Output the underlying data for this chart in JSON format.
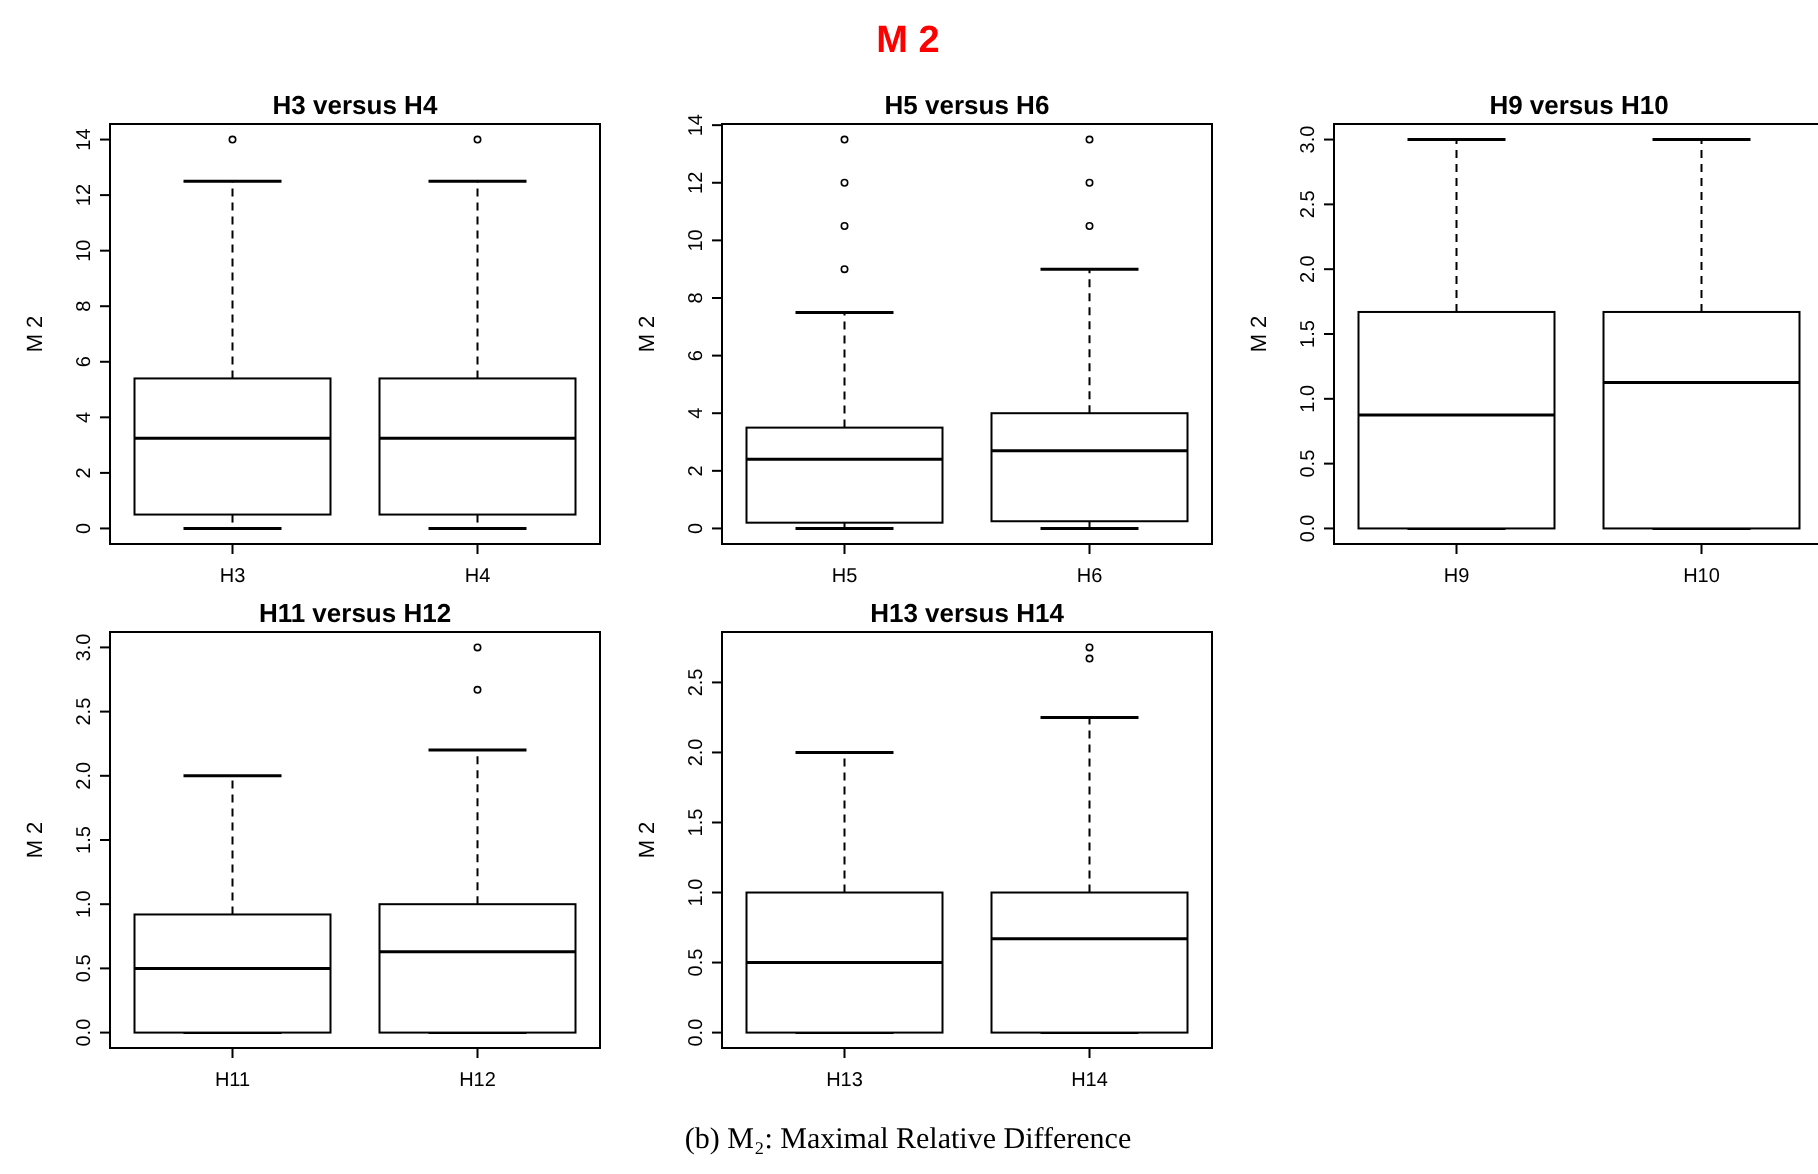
{
  "chart_data": [
    {
      "type": "other",
      "title": "M 2",
      "annotations": [
        "(b) M₂: Maximal Relative Difference"
      ]
    },
    {
      "type": "box",
      "title": "H3  versus  H4",
      "ylabel": "M 2",
      "categories": [
        "H3",
        "H4"
      ],
      "ylim": [
        -0.56,
        14.56
      ],
      "yticks": [
        0,
        2,
        4,
        6,
        8,
        10,
        12,
        14
      ],
      "boxes": [
        {
          "low": 0,
          "q1": 0.5,
          "median": 3.25,
          "q3": 5.4,
          "high": 12.5,
          "outliers": [
            14
          ]
        },
        {
          "low": 0,
          "q1": 0.5,
          "median": 3.25,
          "q3": 5.4,
          "high": 12.5,
          "outliers": [
            14
          ]
        }
      ]
    },
    {
      "type": "box",
      "title": "H5  versus  H6",
      "ylabel": "M 2",
      "categories": [
        "H5",
        "H6"
      ],
      "ylim": [
        -0.54,
        14.04
      ],
      "yticks": [
        0,
        2,
        4,
        6,
        8,
        10,
        12,
        14
      ],
      "boxes": [
        {
          "low": 0,
          "q1": 0.2,
          "median": 2.4,
          "q3": 3.5,
          "high": 7.5,
          "outliers": [
            9,
            10.5,
            12,
            13.5
          ]
        },
        {
          "low": 0,
          "q1": 0.25,
          "median": 2.7,
          "q3": 4.0,
          "high": 9,
          "outliers": [
            10.5,
            12,
            13.5
          ]
        }
      ]
    },
    {
      "type": "box",
      "title": "H9  versus  H10",
      "ylabel": "M 2",
      "categories": [
        "H9",
        "H10"
      ],
      "ylim": [
        -0.12,
        3.12
      ],
      "yticks": [
        {
          "value": 0,
          "label": "0.0"
        },
        {
          "value": 0.5,
          "label": "0.5"
        },
        {
          "value": 1,
          "label": "1.0"
        },
        {
          "value": 1.5,
          "label": "1.5"
        },
        {
          "value": 2,
          "label": "2.0"
        },
        {
          "value": 2.5,
          "label": "2.5"
        },
        {
          "value": 3,
          "label": "3.0"
        }
      ],
      "boxes": [
        {
          "low": 0,
          "q1": 0,
          "median": 0.875,
          "q3": 1.67,
          "high": 3
        },
        {
          "low": 0,
          "q1": 0,
          "median": 1.125,
          "q3": 1.67,
          "high": 3
        }
      ]
    },
    {
      "type": "box",
      "title": "H11  versus  H12",
      "ylabel": "M 2",
      "categories": [
        "H11",
        "H12"
      ],
      "ylim": [
        -0.12,
        3.12
      ],
      "yticks": [
        {
          "value": 0,
          "label": "0.0"
        },
        {
          "value": 0.5,
          "label": "0.5"
        },
        {
          "value": 1,
          "label": "1.0"
        },
        {
          "value": 1.5,
          "label": "1.5"
        },
        {
          "value": 2,
          "label": "2.0"
        },
        {
          "value": 2.5,
          "label": "2.5"
        },
        {
          "value": 3,
          "label": "3.0"
        }
      ],
      "boxes": [
        {
          "low": 0,
          "q1": 0,
          "median": 0.5,
          "q3": 0.92,
          "high": 2
        },
        {
          "low": 0,
          "q1": 0,
          "median": 0.63,
          "q3": 1,
          "high": 2.2,
          "outliers": [
            2.67,
            3
          ]
        }
      ]
    },
    {
      "type": "box",
      "title": "H13  versus  H14",
      "ylabel": "M 2",
      "categories": [
        "H13",
        "H14"
      ],
      "ylim": [
        -0.11,
        2.86
      ],
      "yticks": [
        {
          "value": 0,
          "label": "0.0"
        },
        {
          "value": 0.5,
          "label": "0.5"
        },
        {
          "value": 1,
          "label": "1.0"
        },
        {
          "value": 1.5,
          "label": "1.5"
        },
        {
          "value": 2,
          "label": "2.0"
        },
        {
          "value": 2.5,
          "label": "2.5"
        }
      ],
      "boxes": [
        {
          "low": 0,
          "q1": 0,
          "median": 0.5,
          "q3": 1,
          "high": 2
        },
        {
          "low": 0,
          "q1": 0,
          "median": 0.67,
          "q3": 1,
          "high": 2.25,
          "outliers": [
            2.67,
            2.75
          ]
        }
      ]
    }
  ]
}
